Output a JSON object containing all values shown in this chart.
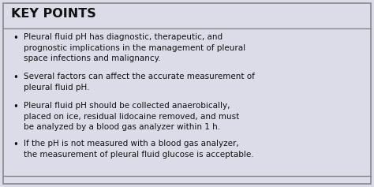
{
  "title": "KEY POINTS",
  "background_color": "#dcdce8",
  "border_color": "#888888",
  "title_color": "#111111",
  "text_color": "#111111",
  "title_fontsize": 11.5,
  "body_fontsize": 7.5,
  "bullet_points": [
    "Pleural fluid pH has diagnostic, therapeutic, and\nprognostic implications in the management of pleural\nspace infections and malignancy.",
    "Several factors can affect the accurate measurement of\npleural fluid pH.",
    "Pleural fluid pH should be collected anaerobically,\nplaced on ice, residual lidocaine removed, and must\nbe analyzed by a blood gas analyzer within 1 h.",
    "If the pH is not measured with a blood gas analyzer,\nthe measurement of pleural fluid glucose is acceptable."
  ],
  "figsize": [
    4.74,
    2.37
  ],
  "dpi": 100
}
